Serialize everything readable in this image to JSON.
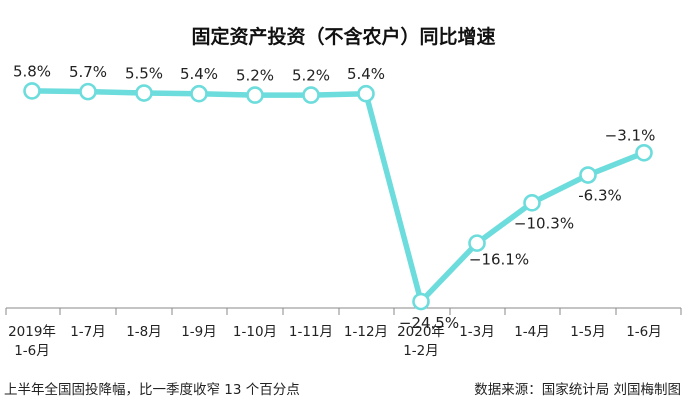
{
  "chart_data": {
    "type": "line",
    "title": "固定资产投资（不含农户）同比增速",
    "x": [
      "2019年 1-6月",
      "1-7月",
      "1-8月",
      "1-9月",
      "1-10月",
      "1-11月",
      "1-12月",
      "2020年 1-2月",
      "1-3月",
      "1-4月",
      "1-5月",
      "1-6月"
    ],
    "x_lines": [
      [
        "2019年",
        "1-6月"
      ],
      [
        "1-7月"
      ],
      [
        "1-8月"
      ],
      [
        "1-9月"
      ],
      [
        "1-10月"
      ],
      [
        "1-11月"
      ],
      [
        "1-12月"
      ],
      [
        "2020年",
        "1-2月"
      ],
      [
        "1-3月"
      ],
      [
        "1-4月"
      ],
      [
        "1-5月"
      ],
      [
        "1-6月"
      ]
    ],
    "values": [
      5.8,
      5.7,
      5.5,
      5.4,
      5.2,
      5.2,
      5.4,
      -24.5,
      -16.1,
      -10.3,
      -6.3,
      -3.1
    ],
    "value_labels": [
      "5.8%",
      "5.7%",
      "5.5%",
      "5.4%",
      "5.2%",
      "5.2%",
      "5.4%",
      "−24.5%",
      "−16.1%",
      "−10.3%",
      "-6.3%",
      "−3.1%"
    ],
    "line_color": "#6ddcdc",
    "grid": false
  },
  "footer": {
    "note": "上半年全国固投降幅，比一季度收窄 13 个百分点",
    "source": "数据来源：国家统计局  刘国梅制图"
  }
}
